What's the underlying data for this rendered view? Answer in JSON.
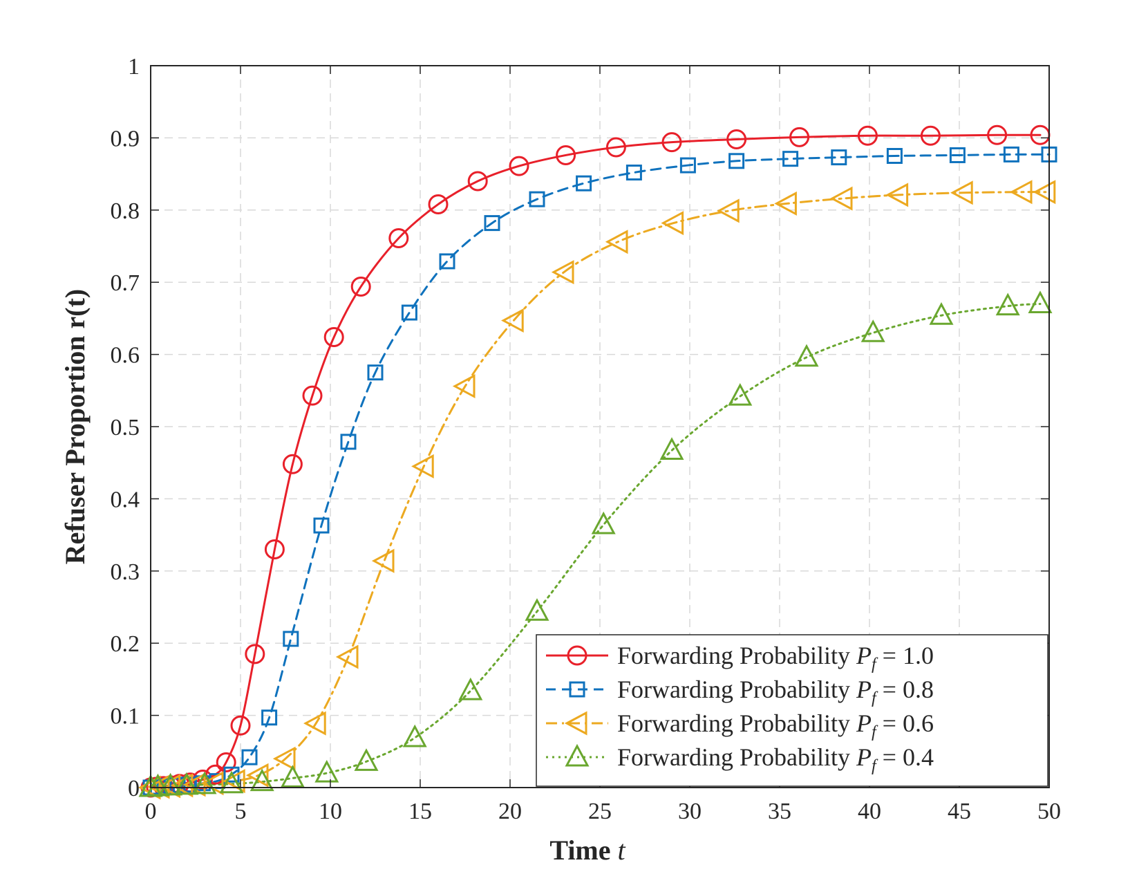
{
  "chart_data": {
    "type": "line",
    "title": "",
    "xlabel": "Time",
    "xlabel_var": "t",
    "ylabel": "Refuser Proportion r(t)",
    "xlim": [
      0,
      50
    ],
    "ylim": [
      0,
      1
    ],
    "xticks": [
      "0",
      "5",
      "10",
      "15",
      "20",
      "25",
      "30",
      "35",
      "40",
      "45",
      "50"
    ],
    "yticks": [
      "0",
      "0.1",
      "0.2",
      "0.3",
      "0.4",
      "0.5",
      "0.6",
      "0.7",
      "0.8",
      "0.9",
      "1"
    ],
    "grid": true,
    "legend_position": "bottom-right",
    "series": [
      {
        "name": "Forwarding Probability P_f = 1.0",
        "legend_prefix": "Forwarding Probability",
        "legend_var": "P",
        "legend_sub": "f",
        "legend_value": "= 1.0",
        "color": "#e8202a",
        "dash": "solid",
        "marker": "circle",
        "x": [
          0,
          0.3,
          0.7,
          1.1,
          1.6,
          2.2,
          2.9,
          3.6,
          4.2,
          5.0,
          5.8,
          6.9,
          7.9,
          9.0,
          10.2,
          11.7,
          13.8,
          16.0,
          18.2,
          20.5,
          23.1,
          25.9,
          29.0,
          32.6,
          36.1,
          39.9,
          43.4,
          47.1,
          49.5
        ],
        "y": [
          0,
          0.001,
          0.002,
          0.003,
          0.005,
          0.007,
          0.011,
          0.018,
          0.035,
          0.086,
          0.185,
          0.33,
          0.448,
          0.543,
          0.624,
          0.694,
          0.761,
          0.808,
          0.84,
          0.861,
          0.876,
          0.887,
          0.894,
          0.898,
          0.901,
          0.903,
          0.903,
          0.904,
          0.904
        ]
      },
      {
        "name": "Forwarding Probability P_f = 0.8",
        "legend_prefix": "Forwarding Probability",
        "legend_var": "P",
        "legend_sub": "f",
        "legend_value": "= 0.8",
        "color": "#0f72bd",
        "dash": "dashed",
        "marker": "square",
        "x": [
          0,
          0.4,
          0.9,
          1.5,
          2.1,
          2.9,
          3.7,
          4.5,
          5.5,
          6.6,
          7.8,
          9.5,
          11.0,
          12.5,
          14.4,
          16.5,
          19.0,
          21.5,
          24.1,
          26.9,
          29.9,
          32.6,
          35.6,
          38.3,
          41.4,
          44.9,
          47.9,
          50.0
        ],
        "y": [
          0,
          0.001,
          0.002,
          0.003,
          0.004,
          0.006,
          0.009,
          0.018,
          0.042,
          0.097,
          0.206,
          0.363,
          0.479,
          0.575,
          0.658,
          0.729,
          0.782,
          0.815,
          0.837,
          0.852,
          0.862,
          0.868,
          0.871,
          0.873,
          0.875,
          0.876,
          0.877,
          0.877
        ]
      },
      {
        "name": "Forwarding Probability P_f = 0.6",
        "legend_prefix": "Forwarding Probability",
        "legend_var": "P",
        "legend_sub": "f",
        "legend_value": "= 0.6",
        "color": "#eca920",
        "dash": "dashdot",
        "marker": "triangle-left",
        "x": [
          0,
          0.5,
          1.1,
          1.8,
          2.5,
          3.5,
          4.7,
          6.0,
          7.5,
          9.2,
          11.0,
          13.0,
          15.2,
          17.5,
          20.2,
          23.0,
          26.0,
          29.1,
          32.2,
          35.4,
          38.5,
          41.6,
          45.2,
          48.5,
          49.8
        ],
        "y": [
          0,
          0.001,
          0.002,
          0.003,
          0.004,
          0.006,
          0.009,
          0.017,
          0.04,
          0.089,
          0.181,
          0.314,
          0.445,
          0.556,
          0.647,
          0.714,
          0.756,
          0.782,
          0.799,
          0.809,
          0.816,
          0.821,
          0.824,
          0.825,
          0.825
        ]
      },
      {
        "name": "Forwarding Probability P_f = 0.4",
        "legend_prefix": "Forwarding Probability",
        "legend_var": "P",
        "legend_sub": "f",
        "legend_value": "= 0.4",
        "color": "#6aa72f",
        "dash": "dotted",
        "marker": "triangle-up",
        "x": [
          0,
          0.4,
          1.1,
          2.0,
          3.0,
          4.5,
          6.2,
          7.9,
          9.8,
          12.0,
          14.7,
          17.8,
          21.5,
          25.2,
          29.0,
          32.8,
          36.5,
          40.2,
          44.0,
          47.7,
          49.5
        ],
        "y": [
          0,
          0.001,
          0.002,
          0.003,
          0.004,
          0.005,
          0.008,
          0.013,
          0.02,
          0.036,
          0.069,
          0.134,
          0.244,
          0.364,
          0.467,
          0.542,
          0.596,
          0.63,
          0.654,
          0.667,
          0.67
        ]
      }
    ]
  }
}
